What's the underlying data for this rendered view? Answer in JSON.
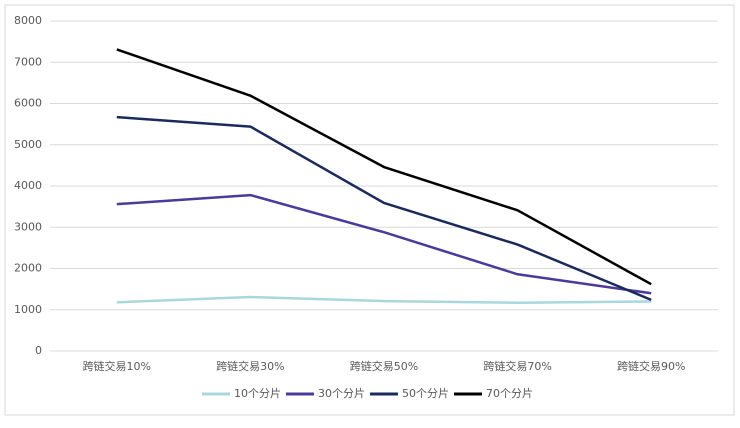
{
  "chart_data": {
    "type": "line",
    "categories": [
      "跨链交易10%",
      "跨链交易30%",
      "跨链交易50%",
      "跨链交易70%",
      "跨链交易90%"
    ],
    "series": [
      {
        "name": "10个分片",
        "color": "#a9d8dc",
        "values": [
          1180,
          1310,
          1210,
          1170,
          1200
        ]
      },
      {
        "name": "30个分片",
        "color": "#4b3a9a",
        "values": [
          3560,
          3780,
          2880,
          1860,
          1400
        ]
      },
      {
        "name": "50个分片",
        "color": "#1b2a5c",
        "values": [
          5670,
          5440,
          3590,
          2580,
          1240
        ]
      },
      {
        "name": "70个分片",
        "color": "#000000",
        "values": [
          7310,
          6190,
          4460,
          3410,
          1620
        ]
      }
    ],
    "ylim": [
      0,
      8000
    ],
    "yticks": [
      0,
      1000,
      2000,
      3000,
      4000,
      5000,
      6000,
      7000,
      8000
    ],
    "grid": true,
    "legend": "bottom"
  }
}
